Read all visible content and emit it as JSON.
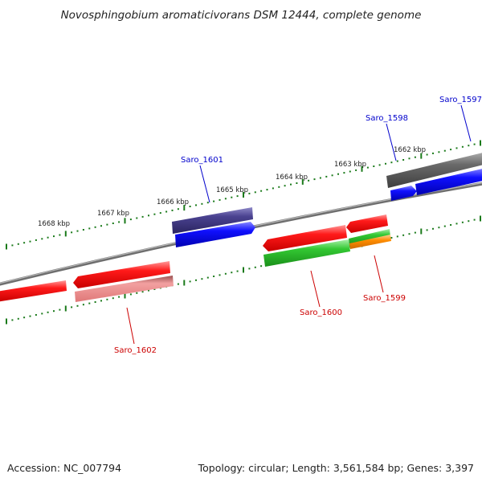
{
  "title": "Novosphingobium aromaticivorans DSM 12444, complete genome",
  "footer": {
    "accession": "Accession: NC_007794",
    "summary": "Topology: circular; Length: 3,561,584 bp; Genes: 3,397"
  },
  "ticks": [
    {
      "label": "1668 kbp"
    },
    {
      "label": "1667 kbp"
    },
    {
      "label": "1666 kbp"
    },
    {
      "label": "1665 kbp"
    },
    {
      "label": "1664 kbp"
    },
    {
      "label": "1663 kbp"
    },
    {
      "label": "1662 kbp"
    }
  ],
  "genes": [
    {
      "name": "Saro_1597",
      "strand": "forward",
      "color": "#0000cc"
    },
    {
      "name": "Saro_1598",
      "strand": "forward",
      "color": "#0000cc"
    },
    {
      "name": "Saro_1599",
      "strand": "reverse",
      "color": "#cc0000"
    },
    {
      "name": "Saro_1600",
      "strand": "reverse",
      "color": "#cc0000"
    },
    {
      "name": "Saro_1601",
      "strand": "forward",
      "color": "#0000cc"
    },
    {
      "name": "Saro_1602",
      "strand": "reverse",
      "color": "#cc0000"
    }
  ],
  "colors": {
    "backbone": "#7a7a7a",
    "tick": "#1a7a1a",
    "forward_gene": "#0000ee",
    "reverse_gene": "#ee0000",
    "orf_green": "#22bb22",
    "orf_orange": "#ff8800",
    "orf_pink": "#f08080",
    "orf_purple": "#3d3580",
    "orf_gray": "#555555"
  }
}
